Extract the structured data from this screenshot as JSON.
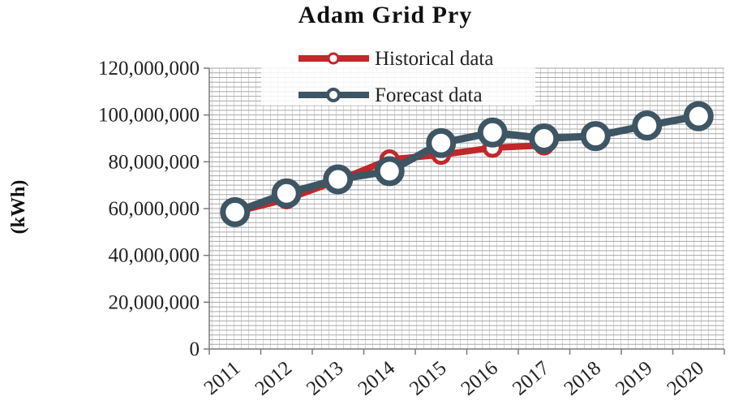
{
  "chart_data": {
    "type": "line",
    "title": "Adam Grid Pry",
    "xlabel": "",
    "ylabel": "(kWh)",
    "ylim": [
      0,
      120000000
    ],
    "yticks": [
      0,
      20000000,
      40000000,
      60000000,
      80000000,
      100000000,
      120000000
    ],
    "ytick_labels": [
      "0",
      "20,000,000",
      "40,000,000",
      "60,000,000",
      "80,000,000",
      "100,000,000",
      "120,000,000"
    ],
    "categories": [
      "2011",
      "2012",
      "2013",
      "2014",
      "2015",
      "2016",
      "2017",
      "2018",
      "2019",
      "2020"
    ],
    "grid": true,
    "legend_position": "top-center",
    "series": [
      {
        "name": "Historical data",
        "color": "#c0282a",
        "values": [
          58500000,
          64000000,
          72000000,
          81000000,
          83000000,
          86000000,
          87000000,
          null,
          null,
          null
        ]
      },
      {
        "name": "Forecast data",
        "color": "#3e5563",
        "values": [
          58500000,
          66500000,
          72500000,
          76000000,
          88000000,
          92500000,
          90000000,
          91000000,
          95500000,
          99500000
        ]
      }
    ]
  }
}
